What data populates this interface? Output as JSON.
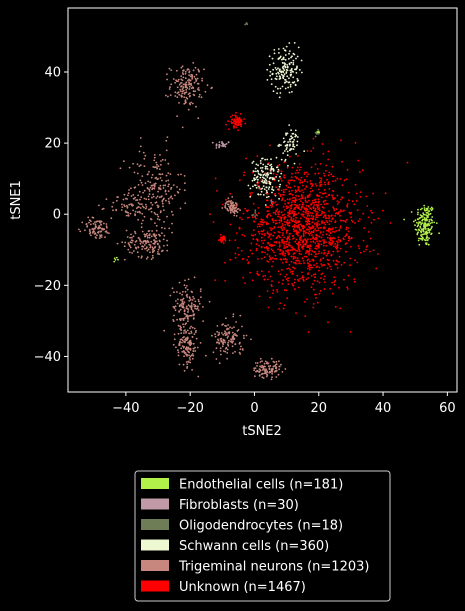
{
  "chart_data": {
    "type": "scatter",
    "title": "",
    "xlabel": "tSNE2",
    "ylabel": "tSNE1",
    "xlim": [
      -58,
      63
    ],
    "ylim": [
      -50,
      58
    ],
    "xticks": [
      -40,
      -20,
      0,
      20,
      40,
      60
    ],
    "yticks": [
      -40,
      -20,
      0,
      20,
      40
    ],
    "xtick_labels": [
      "−40",
      "−20",
      "0",
      "20",
      "40",
      "60"
    ],
    "ytick_labels": [
      "−40",
      "−20",
      "0",
      "20",
      "40"
    ],
    "grid": false,
    "legend_position": "below",
    "background": "#000000",
    "series": [
      {
        "name": "Endothelial cells (n=181)",
        "color": "#b2f04a",
        "count": 181,
        "clusters": [
          {
            "cx": 53,
            "cy": -3,
            "sx": 1.6,
            "sy": 3.2,
            "n": 170
          },
          {
            "cx": 20,
            "cy": 23,
            "sx": 0.3,
            "sy": 0.4,
            "n": 6
          },
          {
            "cx": -43,
            "cy": -12.5,
            "sx": 0.4,
            "sy": 0.2,
            "n": 5
          }
        ]
      },
      {
        "name": "Fibroblasts (n=30)",
        "color": "#c19aa8",
        "count": 30,
        "clusters": [
          {
            "cx": -10,
            "cy": 19.5,
            "sx": 1.2,
            "sy": 0.6,
            "n": 26
          },
          {
            "cx": 5,
            "cy": 3,
            "sx": 0.5,
            "sy": 0.5,
            "n": 4
          }
        ]
      },
      {
        "name": "Oligodendrocytes (n=18)",
        "color": "#6f7d57",
        "count": 18,
        "clusters": [
          {
            "cx": -2.5,
            "cy": 53.5,
            "sx": 0.2,
            "sy": 0.2,
            "n": 4
          },
          {
            "cx": 19.5,
            "cy": 22.8,
            "sx": 0.3,
            "sy": 0.4,
            "n": 8
          },
          {
            "cx": 0,
            "cy": 0,
            "sx": 0.6,
            "sy": 0.6,
            "n": 6
          }
        ]
      },
      {
        "name": "Schwann cells (n=360)",
        "color": "#eef8d2",
        "count": 360,
        "clusters": [
          {
            "cx": 9.5,
            "cy": 40.5,
            "sx": 2.2,
            "sy": 3.3,
            "n": 150
          },
          {
            "cx": 11,
            "cy": 20,
            "sx": 1.6,
            "sy": 2.0,
            "n": 60
          },
          {
            "cx": 3.5,
            "cy": 10,
            "sx": 2.3,
            "sy": 2.7,
            "n": 150
          }
        ]
      },
      {
        "name": "Trigeminal neurons (n=1203)",
        "color": "#c8877e",
        "count": 1203,
        "clusters": [
          {
            "cx": -21,
            "cy": 36,
            "sx": 2.6,
            "sy": 3.0,
            "n": 150
          },
          {
            "cx": -31,
            "cy": 7,
            "sx": 4.2,
            "sy": 6.0,
            "n": 200
          },
          {
            "cx": -39,
            "cy": 2,
            "sx": 3.0,
            "sy": 2.0,
            "n": 60
          },
          {
            "cx": -49,
            "cy": -4,
            "sx": 2.3,
            "sy": 1.5,
            "n": 80
          },
          {
            "cx": -33,
            "cy": -8,
            "sx": 3.6,
            "sy": 2.0,
            "n": 140
          },
          {
            "cx": -21,
            "cy": -26,
            "sx": 2.2,
            "sy": 3.2,
            "n": 140
          },
          {
            "cx": -21,
            "cy": -37,
            "sx": 1.7,
            "sy": 3.0,
            "n": 130
          },
          {
            "cx": -8,
            "cy": -35,
            "sx": 2.4,
            "sy": 2.6,
            "n": 120
          },
          {
            "cx": 4,
            "cy": -43.5,
            "sx": 2.2,
            "sy": 1.2,
            "n": 100
          },
          {
            "cx": -7,
            "cy": 2,
            "sx": 1.0,
            "sy": 1.0,
            "n": 83
          }
        ]
      },
      {
        "name": "Unknown (n=1467)",
        "color": "#ff0000",
        "count": 1467,
        "clusters": [
          {
            "cx": 15,
            "cy": -4,
            "sx": 9.0,
            "sy": 8.5,
            "n": 1367
          },
          {
            "cx": -5.5,
            "cy": 26,
            "sx": 1.0,
            "sy": 0.9,
            "n": 70
          },
          {
            "cx": -10,
            "cy": -7,
            "sx": 0.5,
            "sy": 0.4,
            "n": 30
          }
        ]
      }
    ]
  }
}
